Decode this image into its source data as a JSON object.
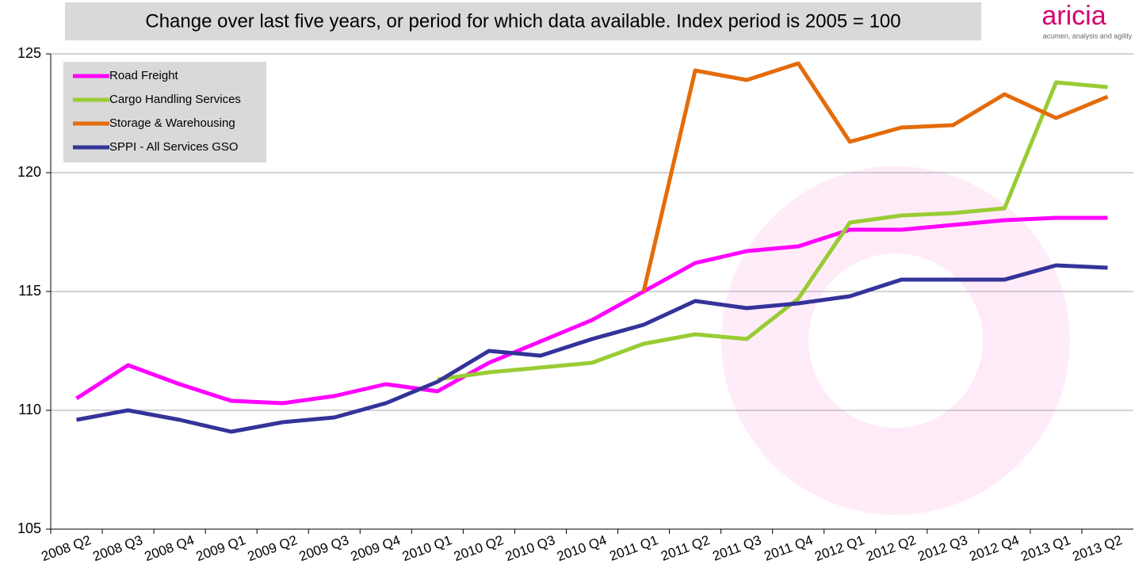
{
  "chart_data": {
    "type": "line",
    "title": "Change over last five years, or period for which data available. Index period is 2005 = 100",
    "logo": {
      "name": "aricia",
      "tagline": "acumen, analysis and agility"
    },
    "categories": [
      "2008 Q2",
      "2008 Q3",
      "2008 Q4",
      "2009 Q1",
      "2009 Q2",
      "2009 Q3",
      "2009 Q4",
      "2010 Q1",
      "2010 Q2",
      "2010 Q3",
      "2010 Q4",
      "2011 Q1",
      "2011 Q2",
      "2011 Q3",
      "2011 Q4",
      "2012 Q1",
      "2012 Q2",
      "2012 Q3",
      "2012 Q4",
      "2013 Q1",
      "2013 Q2"
    ],
    "series": [
      {
        "name": "Road Freight",
        "color": "#ff00ff",
        "values": [
          110.5,
          111.9,
          111.1,
          110.4,
          110.3,
          110.6,
          111.1,
          110.8,
          112.0,
          112.9,
          113.8,
          115.0,
          116.2,
          116.7,
          116.9,
          117.6,
          117.6,
          117.8,
          118.0,
          118.1,
          118.1
        ]
      },
      {
        "name": "Cargo Handling Services",
        "color": "#99cc33",
        "values": [
          null,
          null,
          null,
          null,
          null,
          null,
          null,
          111.3,
          111.6,
          111.8,
          112.0,
          112.8,
          113.2,
          113.0,
          114.7,
          117.9,
          118.2,
          118.3,
          118.5,
          123.8,
          123.6
        ]
      },
      {
        "name": "Storage & Warehousing",
        "color": "#e46c0a",
        "values": [
          null,
          null,
          null,
          null,
          null,
          null,
          null,
          null,
          null,
          null,
          null,
          115.0,
          124.3,
          123.9,
          124.6,
          121.3,
          121.9,
          122.0,
          123.3,
          122.3,
          123.2
        ]
      },
      {
        "name": "SPPI - All Services GSO",
        "color": "#333399",
        "values": [
          109.6,
          110.0,
          109.6,
          109.1,
          109.5,
          109.7,
          110.3,
          111.2,
          112.5,
          112.3,
          113.0,
          113.6,
          114.6,
          114.3,
          114.5,
          114.8,
          115.5,
          115.5,
          115.5,
          116.1,
          116.0
        ]
      }
    ],
    "ylim": [
      105,
      125
    ],
    "yticks": [
      105,
      110,
      115,
      120,
      125
    ],
    "grid": true,
    "legend": "top-left"
  }
}
